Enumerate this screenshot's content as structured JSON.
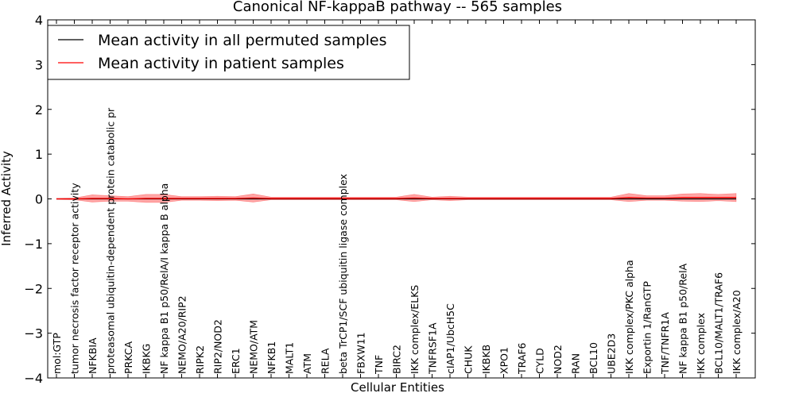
{
  "chart_data": {
    "type": "line",
    "title": "Canonical NF-kappaB pathway -- 565 samples",
    "xlabel": "Cellular Entities",
    "ylabel": "Inferred Activity",
    "ylim": [
      -4,
      4
    ],
    "yticks": [
      {
        "value": 4,
        "label": "4"
      },
      {
        "value": 3,
        "label": "3"
      },
      {
        "value": 2,
        "label": "2"
      },
      {
        "value": 1,
        "label": "1"
      },
      {
        "value": 0,
        "label": "0"
      },
      {
        "value": -1,
        "label": "−1"
      },
      {
        "value": -2,
        "label": "−2"
      },
      {
        "value": -3,
        "label": "−3"
      },
      {
        "value": -4,
        "label": "−4"
      }
    ],
    "grid": false,
    "legend": {
      "placement": "top-left",
      "entries": [
        {
          "label": "Mean activity in all permuted samples",
          "color": "#000000"
        },
        {
          "label": "Mean activity in patient samples",
          "color": "#ff0000"
        }
      ]
    },
    "categories": [
      "mol:GTP",
      "tumor necrosis factor receptor activity",
      "NFKBIA",
      "proteasomal ubiquitin-dependent protein catabolic pr",
      "PRKCA",
      "IKBKG",
      "NF kappa B1 p50/RelA/I kappa B alpha",
      "NEMO/A20/RIP2",
      "RIPK2",
      "RIP2/NOD2",
      "ERC1",
      "NEMO/ATM",
      "NFKB1",
      "MALT1",
      "ATM",
      "RELA",
      "beta TrCP1/SCF ubiquitin ligase complex",
      "FBXW11",
      "TNF",
      "BIRC2",
      "IKK complex/ELKS",
      "TNFRSF1A",
      "cIAP1/UbcH5C",
      "CHUK",
      "IKBKB",
      "XPO1",
      "TRAF6",
      "CYLD",
      "NOD2",
      "RAN",
      "BCL10",
      "UBE2D3",
      "IKK complex/PKC alpha",
      "Exportin 1/RanGTP",
      "TNF/TNFR1A",
      "NF kappa B1 p50/RelA",
      "IKK complex",
      "BCL10/MALT1/TRAF6",
      "IKK complex/A20"
    ],
    "series": [
      {
        "name": "Mean activity in all permuted samples",
        "color": "#000000",
        "values": [
          0,
          0,
          0,
          0,
          0,
          0,
          0,
          0,
          0,
          0,
          0,
          0,
          0,
          0,
          0,
          0,
          0,
          0,
          0,
          0,
          0,
          0,
          0,
          0,
          0,
          0,
          0,
          0,
          0,
          0,
          0,
          0,
          0,
          0,
          0,
          0,
          0,
          0,
          0
        ]
      },
      {
        "name": "Mean activity in patient samples",
        "color": "#ff0000",
        "values": [
          0,
          0,
          0.01,
          0.01,
          0,
          0.01,
          0.01,
          0.01,
          0.01,
          0.01,
          0.01,
          0.02,
          0.01,
          0.01,
          0.01,
          0.01,
          0.01,
          0.01,
          0.01,
          0.01,
          0.02,
          0.01,
          0.01,
          0.01,
          0.01,
          0.01,
          0.01,
          0.01,
          0.01,
          0.01,
          0.01,
          0.01,
          0.03,
          0.02,
          0.02,
          0.03,
          0.03,
          0.03,
          0.03
        ],
        "band_half_width": [
          0.01,
          0.02,
          0.08,
          0.06,
          0.05,
          0.09,
          0.09,
          0.04,
          0.04,
          0.05,
          0.04,
          0.09,
          0.03,
          0.03,
          0.03,
          0.03,
          0.03,
          0.03,
          0.03,
          0.03,
          0.08,
          0.03,
          0.05,
          0.03,
          0.03,
          0.03,
          0.03,
          0.03,
          0.03,
          0.03,
          0.03,
          0.03,
          0.09,
          0.05,
          0.05,
          0.08,
          0.09,
          0.07,
          0.09
        ]
      }
    ]
  }
}
